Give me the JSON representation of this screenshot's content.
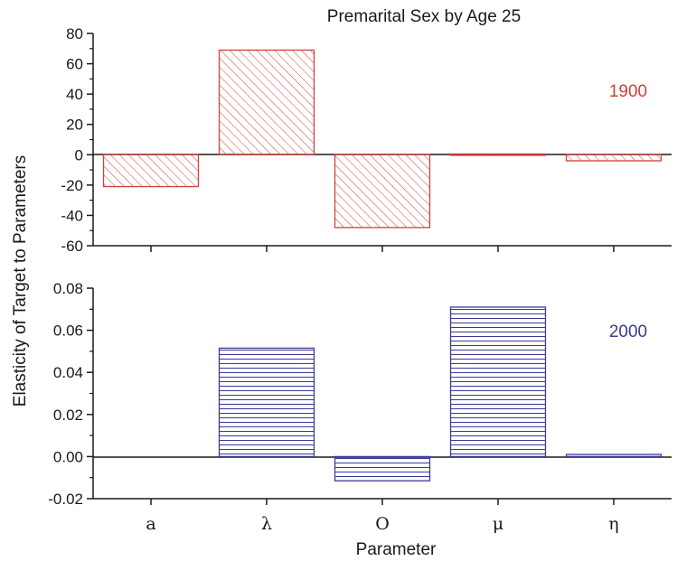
{
  "chart_data": {
    "type": "bar",
    "title": "Premarital Sex by Age 25",
    "xlabel": "Parameter",
    "ylabel": "Elasticity of Target to Parameters",
    "categories": [
      "a",
      "λ",
      "O",
      "μ",
      "η"
    ],
    "panels": [
      {
        "series": [
          {
            "name": "1900",
            "values": [
              -21,
              69,
              -48,
              0.5,
              -4
            ]
          }
        ],
        "ylim": [
          -60,
          80
        ],
        "yticks": [
          "80",
          "60",
          "40",
          "20",
          "0",
          "-20",
          "-40",
          "-60"
        ],
        "ytick_values": [
          80,
          60,
          40,
          20,
          0,
          -20,
          -40,
          -60
        ],
        "color": "#d0413d",
        "hatch": "diagonal"
      },
      {
        "series": [
          {
            "name": "2000",
            "values": [
              0,
              0.0515,
              -0.0115,
              0.071,
              0.001
            ]
          }
        ],
        "ylim": [
          -0.02,
          0.08
        ],
        "yticks": [
          "0.08",
          "0.06",
          "0.04",
          "0.02",
          "0.00",
          "-0.02"
        ],
        "ytick_values": [
          0.08,
          0.06,
          0.04,
          0.02,
          0.0,
          -0.02
        ],
        "color": "#3b3b96",
        "hatch": "horizontal"
      }
    ],
    "grid": false,
    "legend": "none"
  }
}
